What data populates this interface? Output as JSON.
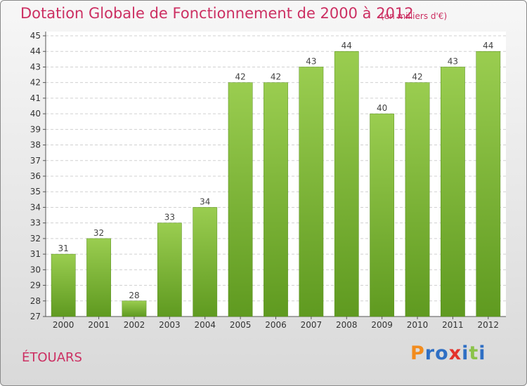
{
  "chart_data": {
    "type": "bar",
    "title": "Dotation Globale de Fonctionnement de 2000 à 2012",
    "subtitle": "(en milliers d'€)",
    "categories": [
      "2000",
      "2001",
      "2002",
      "2003",
      "2004",
      "2005",
      "2006",
      "2007",
      "2008",
      "2009",
      "2010",
      "2011",
      "2012"
    ],
    "values": [
      31,
      32,
      28,
      33,
      34,
      42,
      42,
      43,
      44,
      40,
      42,
      43,
      44
    ],
    "ylim": [
      27,
      45
    ],
    "yticks": [
      27,
      28,
      29,
      30,
      31,
      32,
      33,
      34,
      35,
      36,
      37,
      38,
      39,
      40,
      41,
      42,
      43,
      44,
      45
    ],
    "grid": true,
    "bar_color": "#7ab83a",
    "bar_color_light": "#9acd50",
    "bar_color_dark": "#5f9a20"
  },
  "commune": "ÉTOUARS",
  "logo": {
    "text": "Proxiti",
    "letters": [
      {
        "char": "P",
        "color": "#f28c1e"
      },
      {
        "char": "r",
        "color": "#2f6fc4"
      },
      {
        "char": "o",
        "color": "#2f6fc4"
      },
      {
        "char": "x",
        "color": "#e4322b"
      },
      {
        "char": "i",
        "color": "#2f6fc4"
      },
      {
        "char": "t",
        "color": "#8bc34a"
      },
      {
        "char": "i",
        "color": "#2f6fc4"
      }
    ]
  }
}
